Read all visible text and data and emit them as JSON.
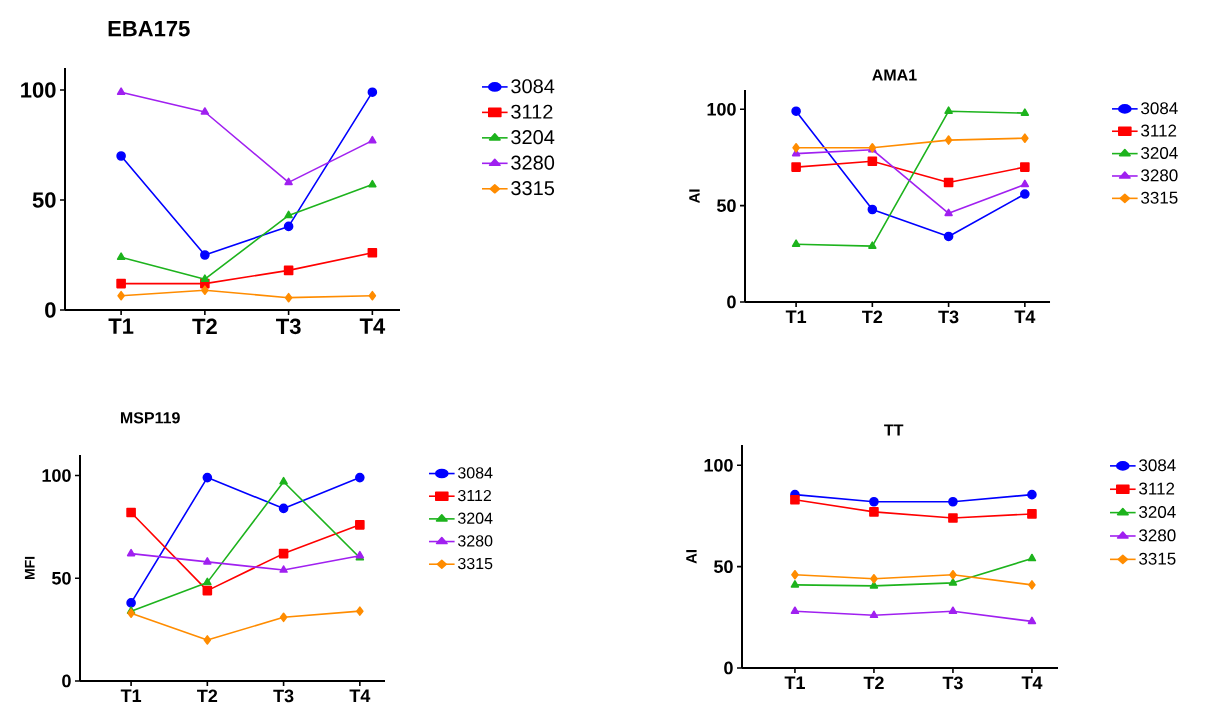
{
  "chart_data": [
    {
      "type": "line",
      "title": "EBA175",
      "categories": [
        "T1",
        "T2",
        "T3",
        "T4"
      ],
      "ylim": [
        0,
        110
      ],
      "yticks": [
        0,
        50,
        100
      ],
      "legend": "right",
      "series": [
        {
          "name": "3084",
          "color": "#0000ff",
          "marker": "circle",
          "values": [
            70,
            25,
            38,
            99
          ]
        },
        {
          "name": "3112",
          "color": "#ff0000",
          "marker": "square",
          "values": [
            12,
            12,
            18,
            26
          ]
        },
        {
          "name": "3204",
          "color": "#1db31d",
          "marker": "triangle",
          "values": [
            24,
            14,
            43,
            57
          ]
        },
        {
          "name": "3280",
          "color": "#a020f0",
          "marker": "triangle",
          "values": [
            99,
            90,
            58,
            77
          ]
        },
        {
          "name": "3315",
          "color": "#ff8c00",
          "marker": "diamond",
          "values": [
            6.5,
            9,
            5.6,
            6.5
          ]
        }
      ]
    },
    {
      "type": "line",
      "title": "AMA1",
      "ylabel": "AI",
      "categories": [
        "T1",
        "T2",
        "T3",
        "T4"
      ],
      "ylim": [
        0,
        110
      ],
      "yticks": [
        0,
        50,
        100
      ],
      "legend": "right",
      "series": [
        {
          "name": "3084",
          "color": "#0000ff",
          "marker": "circle",
          "values": [
            99,
            48,
            34,
            56
          ]
        },
        {
          "name": "3112",
          "color": "#ff0000",
          "marker": "square",
          "values": [
            70,
            73,
            62,
            70
          ]
        },
        {
          "name": "3204",
          "color": "#1db31d",
          "marker": "triangle",
          "values": [
            30,
            29,
            99,
            98
          ]
        },
        {
          "name": "3280",
          "color": "#a020f0",
          "marker": "triangle",
          "values": [
            77,
            79,
            46,
            61
          ]
        },
        {
          "name": "3315",
          "color": "#ff8c00",
          "marker": "diamond",
          "values": [
            80,
            80,
            84,
            85
          ]
        }
      ]
    },
    {
      "type": "line",
      "title": "MSP119",
      "ylabel": "MFI",
      "categories": [
        "T1",
        "T2",
        "T3",
        "T4"
      ],
      "ylim": [
        0,
        110
      ],
      "yticks": [
        0,
        50,
        100
      ],
      "legend": "right",
      "series": [
        {
          "name": "3084",
          "color": "#0000ff",
          "marker": "circle",
          "values": [
            38,
            99,
            84,
            99
          ]
        },
        {
          "name": "3112",
          "color": "#ff0000",
          "marker": "square",
          "values": [
            82,
            44,
            62,
            76
          ]
        },
        {
          "name": "3204",
          "color": "#1db31d",
          "marker": "triangle",
          "values": [
            34,
            48,
            97,
            60
          ]
        },
        {
          "name": "3280",
          "color": "#a020f0",
          "marker": "triangle",
          "values": [
            62,
            58,
            54,
            61
          ]
        },
        {
          "name": "3315",
          "color": "#ff8c00",
          "marker": "diamond",
          "values": [
            33,
            20,
            31,
            34
          ]
        }
      ]
    },
    {
      "type": "line",
      "title": "TT",
      "ylabel": "AI",
      "categories": [
        "T1",
        "T2",
        "T3",
        "T4"
      ],
      "ylim": [
        0,
        110
      ],
      "yticks": [
        0,
        50,
        100
      ],
      "legend": "right",
      "series": [
        {
          "name": "3084",
          "color": "#0000ff",
          "marker": "circle",
          "values": [
            85.5,
            82,
            82,
            85.5
          ]
        },
        {
          "name": "3112",
          "color": "#ff0000",
          "marker": "square",
          "values": [
            83,
            77,
            74,
            76
          ]
        },
        {
          "name": "3204",
          "color": "#1db31d",
          "marker": "triangle",
          "values": [
            41,
            40.5,
            42,
            54
          ]
        },
        {
          "name": "3280",
          "color": "#a020f0",
          "marker": "triangle",
          "values": [
            28,
            26,
            28,
            23
          ]
        },
        {
          "name": "3315",
          "color": "#ff8c00",
          "marker": "diamond",
          "values": [
            46,
            44,
            46,
            41
          ]
        }
      ]
    }
  ]
}
